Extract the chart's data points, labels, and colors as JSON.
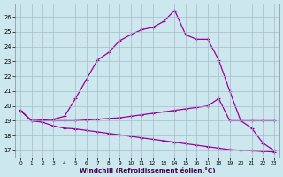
{
  "xlabel": "Windchill (Refroidissement éolien,°C)",
  "bg_color": "#cce8ee",
  "grid_color": "#aabbc8",
  "line_color": "#990099",
  "x_ticks": [
    0,
    1,
    2,
    3,
    4,
    5,
    6,
    7,
    8,
    9,
    10,
    11,
    12,
    13,
    14,
    15,
    16,
    17,
    18,
    19,
    20,
    21,
    22,
    23
  ],
  "y_ticks": [
    17,
    18,
    19,
    20,
    21,
    22,
    23,
    24,
    25,
    26
  ],
  "xlim": [
    -0.5,
    23.5
  ],
  "ylim": [
    16.5,
    26.9
  ],
  "line1_x": [
    0,
    1,
    2,
    3,
    4,
    5,
    6,
    7,
    8,
    9,
    10,
    11,
    12,
    13,
    14,
    15,
    16,
    17,
    18,
    19,
    20,
    21,
    22,
    23
  ],
  "line1_y": [
    19.7,
    19.0,
    19.05,
    19.1,
    19.3,
    20.5,
    21.8,
    23.1,
    23.6,
    24.4,
    24.8,
    25.15,
    25.3,
    25.7,
    26.45,
    24.8,
    24.5,
    24.5,
    23.1,
    21.0,
    19.0,
    18.5,
    17.5,
    17.0
  ],
  "line2_x": [
    0,
    1,
    2,
    3,
    4,
    5,
    6,
    7,
    8,
    9,
    10,
    11,
    12,
    13,
    14,
    15,
    16,
    17,
    18,
    19,
    20,
    21,
    22,
    23
  ],
  "line2_y": [
    19.7,
    19.0,
    19.0,
    19.0,
    19.0,
    19.0,
    19.05,
    19.1,
    19.15,
    19.2,
    19.3,
    19.4,
    19.5,
    19.6,
    19.7,
    19.8,
    19.9,
    20.0,
    20.5,
    19.0,
    19.0,
    19.0,
    19.0,
    19.0
  ],
  "line3_x": [
    0,
    1,
    2,
    3,
    4,
    5,
    6,
    7,
    8,
    9,
    10,
    11,
    12,
    13,
    14,
    15,
    16,
    17,
    18,
    19,
    20,
    21,
    22,
    23
  ],
  "line3_y": [
    19.7,
    19.0,
    18.9,
    18.65,
    18.5,
    18.45,
    18.35,
    18.25,
    18.15,
    18.05,
    17.95,
    17.85,
    17.75,
    17.65,
    17.55,
    17.45,
    17.35,
    17.25,
    17.15,
    17.05,
    17.0,
    16.97,
    16.93,
    16.9
  ]
}
